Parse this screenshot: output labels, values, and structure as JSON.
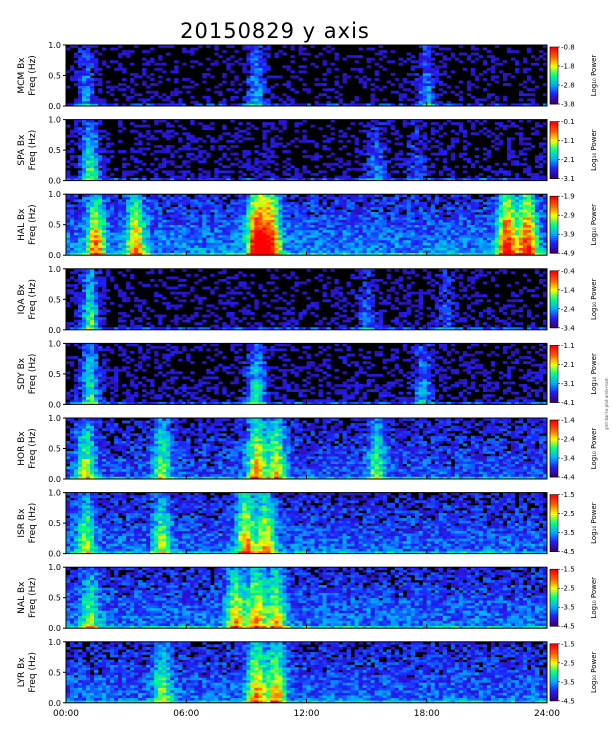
{
  "title": "20150829 y axis",
  "colormap": [
    "#3a0070",
    "#2020ff",
    "#00b0ff",
    "#00ff80",
    "#ffff00",
    "#ff6000",
    "#ff0000"
  ],
  "side_note": "gmt-bar-to-plot-amb-mam",
  "chart_data": {
    "type": "heatmap",
    "x_ticks": [
      "00:00",
      "06:00",
      "12:00",
      "18:00",
      "24:00"
    ],
    "xlim_hours": [
      0,
      24
    ],
    "panels": [
      {
        "station": "MCM Bx",
        "ylabel": "Freq (Hz)",
        "yticks": [
          "0.0",
          "0.5",
          "1.0"
        ],
        "cblabel": "Log₁₀ Power",
        "cbticks": [
          "-0.8",
          "-1.8",
          "-2.8",
          "-3.8"
        ],
        "bg": 0.02,
        "activity": [
          [
            1.0,
            0.3
          ],
          [
            9.5,
            0.35
          ],
          [
            18.0,
            0.3
          ]
        ]
      },
      {
        "station": "SPA Bx",
        "ylabel": "Freq (Hz)",
        "yticks": [
          "0.0",
          "0.5",
          "1.0"
        ],
        "cblabel": "Log₁₀ Power",
        "cbticks": [
          "-0.1",
          "-1.1",
          "-2.1",
          "-3.1"
        ],
        "bg": 0.05,
        "activity": [
          [
            1.2,
            0.5
          ],
          [
            15.5,
            0.25
          ],
          [
            17.5,
            0.2
          ]
        ]
      },
      {
        "station": "HAL Bx",
        "ylabel": "Freq (Hz)",
        "yticks": [
          "0.0",
          "0.5",
          "1.0"
        ],
        "cblabel": "Log₁₀ Power",
        "cbticks": [
          "-1.9",
          "-2.9",
          "-3.9",
          "-4.9"
        ],
        "bg": 0.3,
        "activity": [
          [
            1.5,
            0.6
          ],
          [
            3.5,
            0.55
          ],
          [
            9.5,
            0.85
          ],
          [
            10.2,
            0.8
          ],
          [
            22.0,
            0.8
          ],
          [
            23.0,
            0.75
          ]
        ]
      },
      {
        "station": "IQA Bx",
        "ylabel": "Freq (Hz)",
        "yticks": [
          "0.0",
          "0.5",
          "1.0"
        ],
        "cblabel": "Log₁₀ Power",
        "cbticks": [
          "-0.4",
          "-1.4",
          "-2.4",
          "-3.4"
        ],
        "bg": 0.04,
        "activity": [
          [
            1.2,
            0.5
          ],
          [
            15.0,
            0.2
          ],
          [
            19.0,
            0.2
          ]
        ]
      },
      {
        "station": "SDY Bx",
        "ylabel": "Freq (Hz)",
        "yticks": [
          "0.0",
          "0.5",
          "1.0"
        ],
        "cblabel": "Log₁₀ Power",
        "cbticks": [
          "-1.1",
          "-2.1",
          "-3.1",
          "-4.1"
        ],
        "bg": 0.06,
        "activity": [
          [
            1.2,
            0.45
          ],
          [
            9.5,
            0.45
          ],
          [
            17.8,
            0.3
          ]
        ]
      },
      {
        "station": "HOR Bx",
        "ylabel": "Freq (Hz)",
        "yticks": [
          "0.0",
          "0.5",
          "1.0"
        ],
        "cblabel": "Log₁₀ Power",
        "cbticks": [
          "-1.4",
          "-2.4",
          "-3.4",
          "-4.4"
        ],
        "bg": 0.22,
        "activity": [
          [
            1.0,
            0.45
          ],
          [
            4.8,
            0.4
          ],
          [
            9.5,
            0.6
          ],
          [
            10.5,
            0.55
          ],
          [
            15.5,
            0.35
          ]
        ]
      },
      {
        "station": "ISR Bx",
        "ylabel": "Freq (Hz)",
        "yticks": [
          "0.0",
          "0.5",
          "1.0"
        ],
        "cblabel": "Log₁₀ Power",
        "cbticks": [
          "-1.5",
          "-2.5",
          "-3.5",
          "-4.5"
        ],
        "bg": 0.25,
        "activity": [
          [
            1.0,
            0.4
          ],
          [
            4.8,
            0.4
          ],
          [
            9.0,
            0.6
          ],
          [
            10.0,
            0.55
          ]
        ]
      },
      {
        "station": "NAL Bx",
        "ylabel": "Freq (Hz)",
        "yticks": [
          "0.0",
          "0.5",
          "1.0"
        ],
        "cblabel": "Log₁₀ Power",
        "cbticks": [
          "-1.5",
          "-2.5",
          "-3.5",
          "-4.5"
        ],
        "bg": 0.27,
        "activity": [
          [
            1.2,
            0.35
          ],
          [
            8.5,
            0.55
          ],
          [
            9.5,
            0.55
          ],
          [
            10.5,
            0.5
          ]
        ]
      },
      {
        "station": "LYR Bx",
        "ylabel": "Freq (Hz)",
        "yticks": [
          "0.0",
          "0.5",
          "1.0"
        ],
        "cblabel": "Log₁₀ Power",
        "cbticks": [
          "-1.5",
          "-2.5",
          "-3.5",
          "-4.5"
        ],
        "bg": 0.26,
        "activity": [
          [
            4.8,
            0.35
          ],
          [
            9.5,
            0.6
          ],
          [
            10.5,
            0.55
          ]
        ]
      }
    ]
  }
}
